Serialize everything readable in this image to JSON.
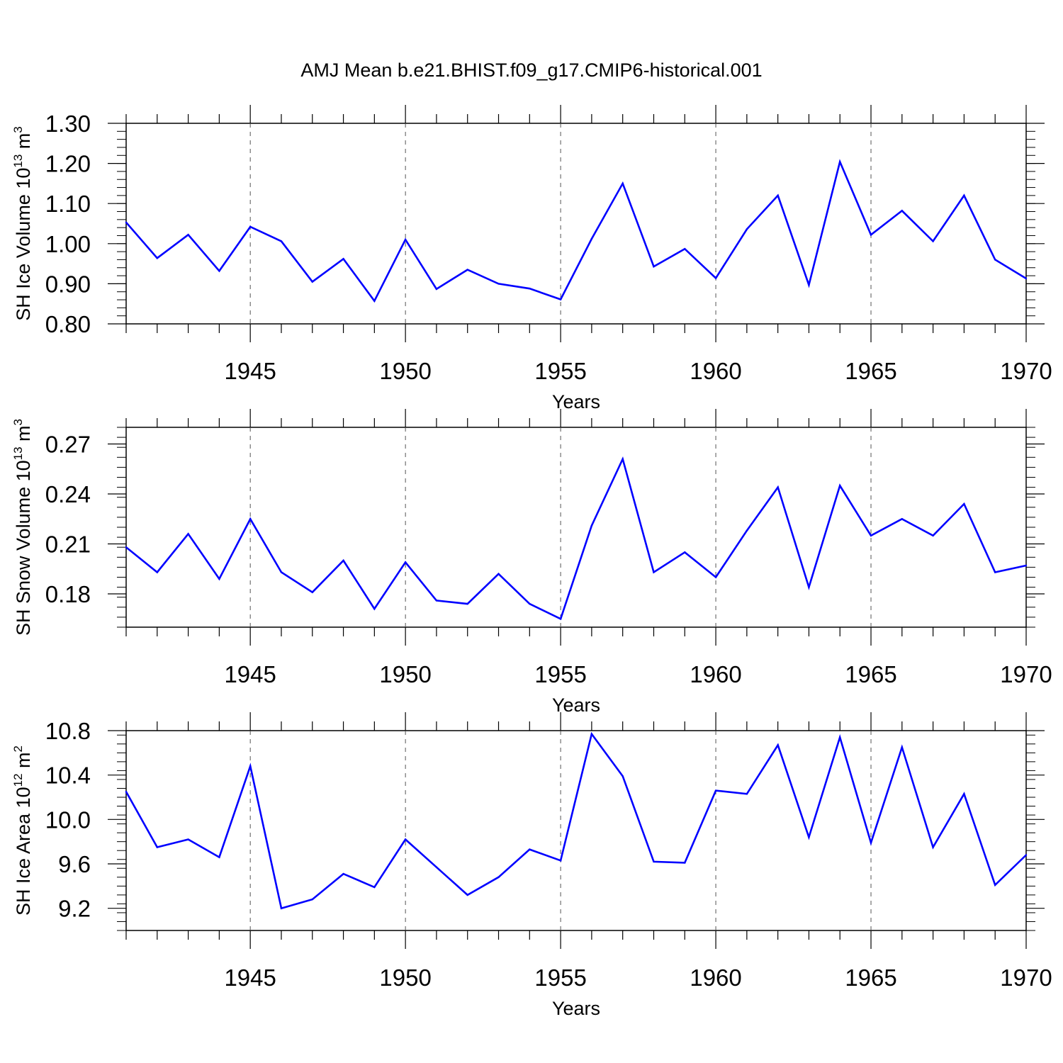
{
  "title": "AMJ Mean b.e21.BHIST.f09_g17.CMIP6-historical.001",
  "line_color": "#0000ff",
  "chart_data": [
    {
      "type": "line",
      "ylabel": "SH Ice Volume 10",
      "ylabel_exp1": "13",
      "ylabel_unit": " m",
      "ylabel_exp2": "3",
      "xlabel": "Years",
      "xlim": [
        1941,
        1970
      ],
      "ylim": [
        0.8,
        1.3
      ],
      "yticks": [
        0.8,
        0.9,
        1.0,
        1.1,
        1.2,
        1.3
      ],
      "ytick_labels": [
        "0.80",
        "0.90",
        "1.00",
        "1.10",
        "1.20",
        "1.30"
      ],
      "xticks": [
        1945,
        1950,
        1955,
        1960,
        1965,
        1970
      ],
      "xtick_labels": [
        "1945",
        "1950",
        "1955",
        "1960",
        "1965",
        "1970"
      ],
      "x": [
        1941,
        1942,
        1943,
        1944,
        1945,
        1946,
        1947,
        1948,
        1949,
        1950,
        1951,
        1952,
        1953,
        1954,
        1955,
        1956,
        1957,
        1958,
        1959,
        1960,
        1961,
        1962,
        1963,
        1964,
        1965,
        1966,
        1967,
        1968,
        1969,
        1970
      ],
      "values": [
        1.053,
        0.964,
        1.022,
        0.932,
        1.042,
        1.006,
        0.905,
        0.962,
        0.857,
        1.01,
        0.887,
        0.935,
        0.9,
        0.888,
        0.861,
        1.012,
        1.15,
        0.943,
        0.987,
        0.914,
        1.036,
        1.12,
        0.897,
        1.204,
        1.022,
        1.082,
        1.006,
        1.12,
        0.96,
        0.913
      ]
    },
    {
      "type": "line",
      "ylabel": "SH Snow Volume 10",
      "ylabel_exp1": "13",
      "ylabel_unit": " m",
      "ylabel_exp2": "3",
      "xlabel": "Years",
      "xlim": [
        1941,
        1970
      ],
      "ylim": [
        0.16,
        0.28
      ],
      "yticks": [
        0.18,
        0.21,
        0.24,
        0.27
      ],
      "ytick_labels": [
        "0.18",
        "0.21",
        "0.24",
        "0.27"
      ],
      "xticks": [
        1945,
        1950,
        1955,
        1960,
        1965,
        1970
      ],
      "xtick_labels": [
        "1945",
        "1950",
        "1955",
        "1960",
        "1965",
        "1970"
      ],
      "x": [
        1941,
        1942,
        1943,
        1944,
        1945,
        1946,
        1947,
        1948,
        1949,
        1950,
        1951,
        1952,
        1953,
        1954,
        1955,
        1956,
        1957,
        1958,
        1959,
        1960,
        1961,
        1962,
        1963,
        1964,
        1965,
        1966,
        1967,
        1968,
        1969,
        1970
      ],
      "values": [
        0.208,
        0.193,
        0.216,
        0.189,
        0.225,
        0.193,
        0.181,
        0.2,
        0.171,
        0.199,
        0.176,
        0.174,
        0.192,
        0.174,
        0.165,
        0.221,
        0.261,
        0.193,
        0.205,
        0.19,
        0.218,
        0.244,
        0.184,
        0.245,
        0.215,
        0.225,
        0.215,
        0.234,
        0.193,
        0.197
      ]
    },
    {
      "type": "line",
      "ylabel": "SH Ice Area 10",
      "ylabel_exp1": "12",
      "ylabel_unit": " m",
      "ylabel_exp2": "2",
      "xlabel": "Years",
      "xlim": [
        1941,
        1970
      ],
      "ylim": [
        9.0,
        10.8
      ],
      "yticks": [
        9.2,
        9.6,
        10.0,
        10.4,
        10.8
      ],
      "ytick_labels": [
        "9.2",
        "9.6",
        "10.0",
        "10.4",
        "10.8"
      ],
      "xticks": [
        1945,
        1950,
        1955,
        1960,
        1965,
        1970
      ],
      "xtick_labels": [
        "1945",
        "1950",
        "1955",
        "1960",
        "1965",
        "1970"
      ],
      "x": [
        1941,
        1942,
        1943,
        1944,
        1945,
        1946,
        1947,
        1948,
        1949,
        1950,
        1951,
        1952,
        1953,
        1954,
        1955,
        1956,
        1957,
        1958,
        1959,
        1960,
        1961,
        1962,
        1963,
        1964,
        1965,
        1966,
        1967,
        1968,
        1969,
        1970
      ],
      "values": [
        10.25,
        9.75,
        9.82,
        9.66,
        10.48,
        9.2,
        9.28,
        9.51,
        9.39,
        9.82,
        9.57,
        9.32,
        9.48,
        9.73,
        9.63,
        10.77,
        10.39,
        9.62,
        9.61,
        10.26,
        10.23,
        10.67,
        9.84,
        10.74,
        9.79,
        10.65,
        9.75,
        10.23,
        9.41,
        9.68
      ]
    }
  ]
}
